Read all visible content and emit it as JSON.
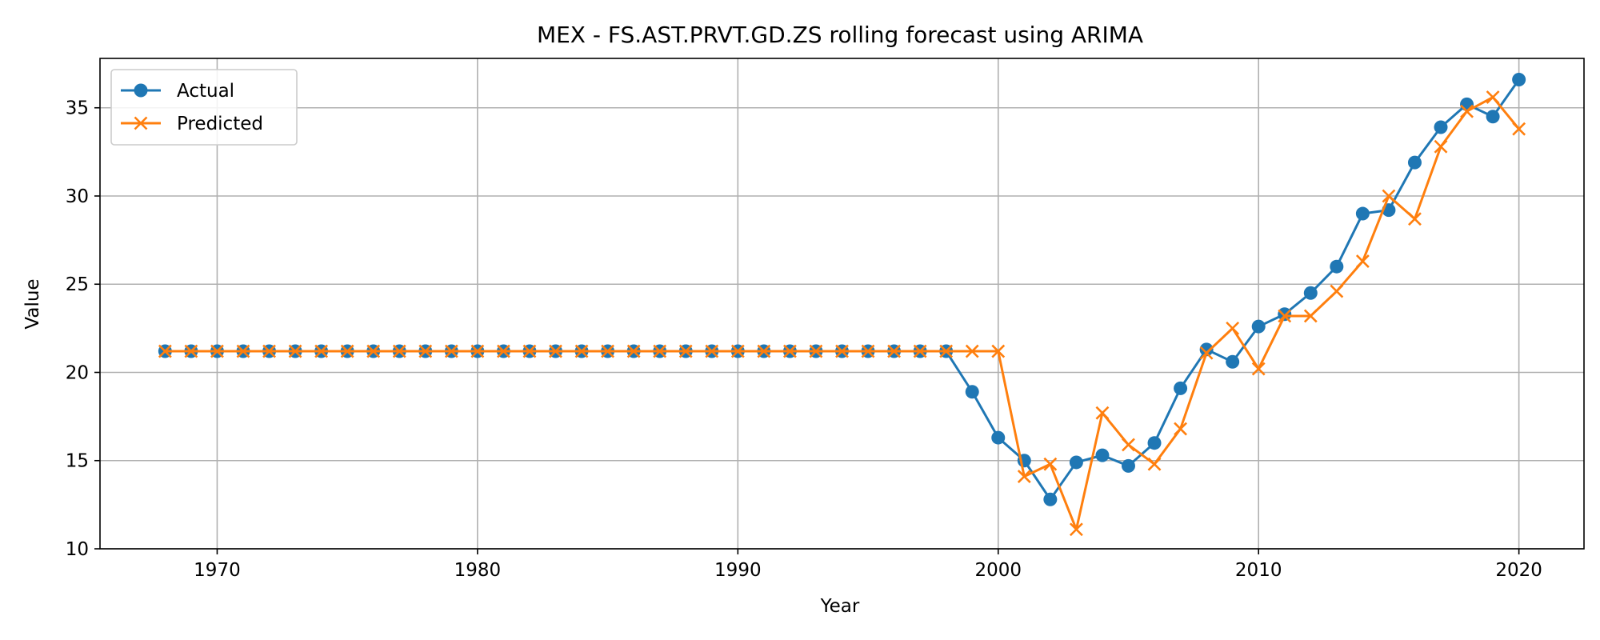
{
  "chart_data": {
    "type": "line",
    "title": "MEX - FS.AST.PRVT.GD.ZS rolling forecast using ARIMA",
    "xlabel": "Year",
    "ylabel": "Value",
    "xlim": [
      1965.5,
      2022.5
    ],
    "ylim": [
      10,
      37.8
    ],
    "xticks": [
      1970,
      1980,
      1990,
      2000,
      2010,
      2020
    ],
    "yticks": [
      10,
      15,
      20,
      25,
      30,
      35
    ],
    "grid": true,
    "legend": "upper-left",
    "x": [
      1968,
      1969,
      1970,
      1971,
      1972,
      1973,
      1974,
      1975,
      1976,
      1977,
      1978,
      1979,
      1980,
      1981,
      1982,
      1983,
      1984,
      1985,
      1986,
      1987,
      1988,
      1989,
      1990,
      1991,
      1992,
      1993,
      1994,
      1995,
      1996,
      1997,
      1998,
      1999,
      2000,
      2001,
      2002,
      2003,
      2004,
      2005,
      2006,
      2007,
      2008,
      2009,
      2010,
      2011,
      2012,
      2013,
      2014,
      2015,
      2016,
      2017,
      2018,
      2019,
      2020
    ],
    "series": [
      {
        "name": "Actual",
        "color": "#1f77b4",
        "marker": "circle",
        "values": [
          21.2,
          21.2,
          21.2,
          21.2,
          21.2,
          21.2,
          21.2,
          21.2,
          21.2,
          21.2,
          21.2,
          21.2,
          21.2,
          21.2,
          21.2,
          21.2,
          21.2,
          21.2,
          21.2,
          21.2,
          21.2,
          21.2,
          21.2,
          21.2,
          21.2,
          21.2,
          21.2,
          21.2,
          21.2,
          21.2,
          21.2,
          18.9,
          16.3,
          15.0,
          12.8,
          14.9,
          15.3,
          14.7,
          16.0,
          19.1,
          21.3,
          20.6,
          22.6,
          23.3,
          24.5,
          26.0,
          29.0,
          29.2,
          31.9,
          33.9,
          35.2,
          34.5,
          36.6
        ]
      },
      {
        "name": "Predicted",
        "color": "#ff7f0e",
        "marker": "x",
        "values": [
          21.2,
          21.2,
          21.2,
          21.2,
          21.2,
          21.2,
          21.2,
          21.2,
          21.2,
          21.2,
          21.2,
          21.2,
          21.2,
          21.2,
          21.2,
          21.2,
          21.2,
          21.2,
          21.2,
          21.2,
          21.2,
          21.2,
          21.2,
          21.2,
          21.2,
          21.2,
          21.2,
          21.2,
          21.2,
          21.2,
          21.2,
          21.2,
          21.2,
          14.1,
          14.8,
          11.1,
          17.7,
          15.9,
          14.8,
          16.8,
          21.1,
          22.5,
          20.2,
          23.2,
          23.2,
          24.6,
          26.3,
          30.0,
          28.7,
          32.8,
          34.8,
          35.6,
          33.8
        ]
      }
    ]
  }
}
